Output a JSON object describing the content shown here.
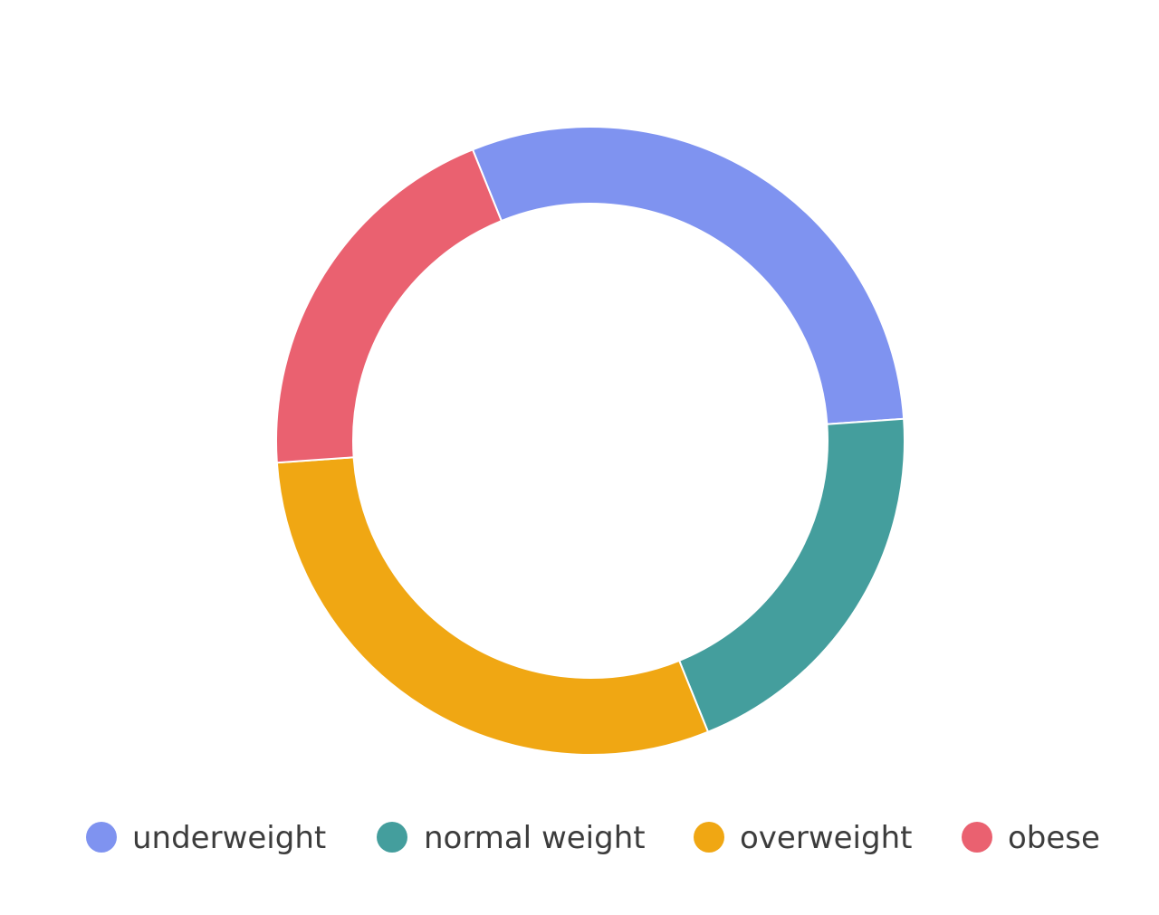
{
  "chart_data": {
    "type": "pie",
    "variant": "donut",
    "title": "",
    "slices": [
      {
        "label": "underweight",
        "value": 30,
        "color": "#7f93f0"
      },
      {
        "label": "normal weight",
        "value": 20,
        "color": "#449e9d"
      },
      {
        "label": "overweight",
        "value": 30,
        "color": "#f0a713"
      },
      {
        "label": "obese",
        "value": 20,
        "color": "#ea6170"
      }
    ],
    "legend_position": "bottom"
  }
}
